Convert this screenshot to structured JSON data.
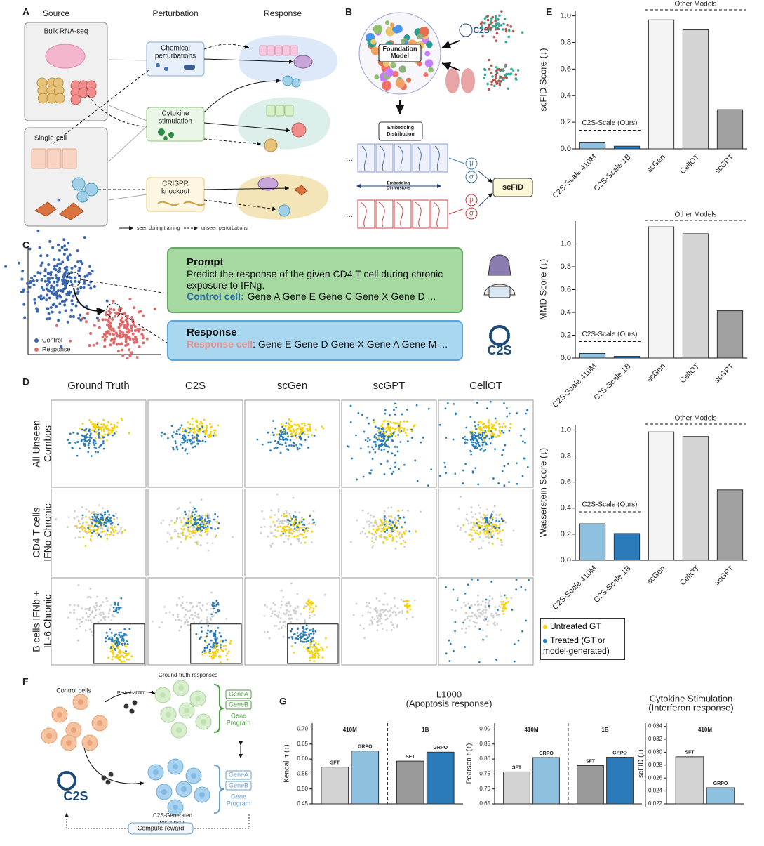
{
  "figure": {
    "panel_labels": [
      "A",
      "B",
      "C",
      "D",
      "E",
      "F",
      "G"
    ],
    "panel_a": {
      "headers": [
        "Source",
        "Perturbation",
        "Response"
      ],
      "sources": [
        "Bulk RNA-seq",
        "Single-cell"
      ],
      "perturbations": [
        [
          "Chemical",
          "perturbations"
        ],
        [
          "Cytokine",
          "stimulation"
        ],
        [
          "CRISPR",
          "knockout"
        ]
      ],
      "legend": [
        "seen during training",
        "unseen perturbations"
      ]
    },
    "panel_b": {
      "model": [
        "Foundation",
        "Model"
      ],
      "logo": "C2S",
      "embedding": [
        "Embedding",
        "Distribution"
      ],
      "dimensions": [
        "Embedding",
        "Dimensions"
      ],
      "metric": "scFID",
      "stats": [
        "μ",
        "σ",
        "μ",
        "σ"
      ],
      "ellipsis": [
        "...",
        "..."
      ]
    },
    "panel_c": {
      "legend": [
        "Control",
        "Response"
      ],
      "prompt_title": "Prompt",
      "prompt_text": "Predict the response of the given CD4 T cell during chronic exposure to IFNg.",
      "control_label": "Control cell:",
      "control_genes": "Gene A Gene E Gene C Gene X Gene D ...",
      "response_title": "Response",
      "response_label": "Response cell",
      "response_genes": ": Gene E Gene D Gene X Gene A Gene M ...",
      "logo": "C2S"
    },
    "panel_d": {
      "columns": [
        "Ground Truth",
        "C2S",
        "scGen",
        "scGPT",
        "CellOT"
      ],
      "rows": [
        [
          "All Unseen",
          "Combos"
        ],
        [
          "CD4 T cells",
          "IFNg Chronic"
        ],
        [
          "B cells IFNb +",
          "IL-6 Chronic"
        ]
      ],
      "legend": [
        "Untreated GT",
        "Treated (GT or model-generated)"
      ]
    },
    "panel_f": {
      "control": "Control cells",
      "perturbation": "Perturbation",
      "ground_truth": "Ground-truth responses",
      "programs": [
        {
          "genes": [
            "GeneA",
            "GeneB"
          ],
          "label": [
            "Gene",
            "Program"
          ]
        },
        {
          "genes": [
            "GeneA",
            "GeneB"
          ],
          "label": [
            "Gene",
            "Program"
          ]
        }
      ],
      "logo": "C2S",
      "generated": [
        "C2S-Generated",
        "responses"
      ],
      "reward": "Compute reward"
    },
    "panel_g": {
      "titles": [
        [
          "L1000",
          "(Apoptosis response)"
        ],
        [
          "Cytokine Stimulation",
          "(Interferon response)"
        ]
      ]
    }
  },
  "chart_data": [
    {
      "type": "bar",
      "ylabel": "scFID Score (↓)",
      "categories": [
        "C2S-Scale 410M",
        "C2S-Scale 1B",
        "scGen",
        "CellOT",
        "scGPT"
      ],
      "values": [
        0.05,
        0.02,
        0.97,
        0.895,
        0.295
      ],
      "colors": [
        "#8ec1e0",
        "#2b7bba",
        "#f4f4f4",
        "#d4d4d4",
        "#a0a0a0"
      ],
      "ylim": [
        0,
        1.04
      ],
      "yticks": [
        {
          "value": 0,
          "label": "0.0"
        },
        0.2,
        0.4,
        0.6,
        0.8,
        {
          "value": 1,
          "label": "1.0"
        }
      ],
      "annotations": [
        "Other Models",
        "C2S-Scale (Ours)"
      ]
    },
    {
      "type": "bar",
      "ylabel": "MMD Score (↓)",
      "categories": [
        "C2S-Scale 410M",
        "C2S-Scale 1B",
        "scGen",
        "CellOT",
        "scGPT"
      ],
      "values": [
        0.04,
        0.015,
        1.15,
        1.09,
        0.415
      ],
      "colors": [
        "#8ec1e0",
        "#2b7bba",
        "#f4f4f4",
        "#d4d4d4",
        "#a0a0a0"
      ],
      "ylim": [
        0,
        1.2
      ],
      "yticks": [
        {
          "value": 0,
          "label": "0.0"
        },
        0.2,
        0.4,
        0.6,
        0.8,
        {
          "value": 1,
          "label": "1.0"
        }
      ],
      "annotations": [
        "Other Models",
        "C2S-Scale (Ours)"
      ]
    },
    {
      "type": "bar",
      "ylabel": "Wasserstein Score (↓)",
      "categories": [
        "C2S-Scale 410M",
        "C2S-Scale 1B",
        "scGen",
        "CellOT",
        "scGPT"
      ],
      "values": [
        0.28,
        0.205,
        0.985,
        0.95,
        0.54
      ],
      "colors": [
        "#8ec1e0",
        "#2b7bba",
        "#f4f4f4",
        "#d4d4d4",
        "#a0a0a0"
      ],
      "ylim": [
        0,
        1.04
      ],
      "yticks": [
        {
          "value": 0,
          "label": "0.0"
        },
        0.2,
        0.4,
        0.6,
        0.8,
        {
          "value": 1,
          "label": "1.0"
        }
      ],
      "annotations": [
        "Other Models",
        "C2S-Scale (Ours)"
      ]
    },
    {
      "type": "grouped_bar",
      "ylabel": "Kendall τ (↑)",
      "groups": [
        {
          "name": "410M",
          "categories": [
            "SFT",
            "GRPO"
          ],
          "values": [
            0.573,
            0.627
          ],
          "colors": [
            "#d3d3d3",
            "#8ec1e0"
          ]
        },
        {
          "name": "1B",
          "categories": [
            "SFT",
            "GRPO"
          ],
          "values": [
            0.593,
            0.623
          ],
          "colors": [
            "#9a9a9a",
            "#2b7bba"
          ]
        }
      ],
      "ylim": [
        0.45,
        0.72
      ],
      "yticks": [
        0.45,
        {
          "value": 0.5,
          "label": "0.50"
        },
        0.55,
        {
          "value": 0.6,
          "label": "0.60"
        },
        0.65,
        {
          "value": 0.7,
          "label": "0.70"
        }
      ]
    },
    {
      "type": "grouped_bar",
      "ylabel": "Pearson r (↑)",
      "groups": [
        {
          "name": "410M",
          "categories": [
            "SFT",
            "GRPO"
          ],
          "values": [
            0.757,
            0.805
          ],
          "colors": [
            "#d3d3d3",
            "#8ec1e0"
          ]
        },
        {
          "name": "1B",
          "categories": [
            "SFT",
            "GRPO"
          ],
          "values": [
            0.778,
            0.806
          ],
          "colors": [
            "#9a9a9a",
            "#2b7bba"
          ]
        }
      ],
      "ylim": [
        0.65,
        0.92
      ],
      "yticks": [
        0.65,
        {
          "value": 0.7,
          "label": "0.70"
        },
        0.75,
        {
          "value": 0.8,
          "label": "0.80"
        },
        0.85,
        {
          "value": 0.9,
          "label": "0.90"
        }
      ]
    },
    {
      "type": "grouped_bar",
      "ylabel": "scFID (↓)",
      "groups": [
        {
          "name": "410M",
          "categories": [
            "SFT",
            "GRPO"
          ],
          "values": [
            0.0293,
            0.0245
          ],
          "colors": [
            "#d3d3d3",
            "#8ec1e0"
          ]
        }
      ],
      "ylim": [
        0.022,
        0.0345
      ],
      "yticks": [
        0.022,
        0.024,
        0.026,
        0.028,
        {
          "value": 0.03,
          "label": "0.030"
        },
        0.032,
        0.034
      ]
    }
  ]
}
